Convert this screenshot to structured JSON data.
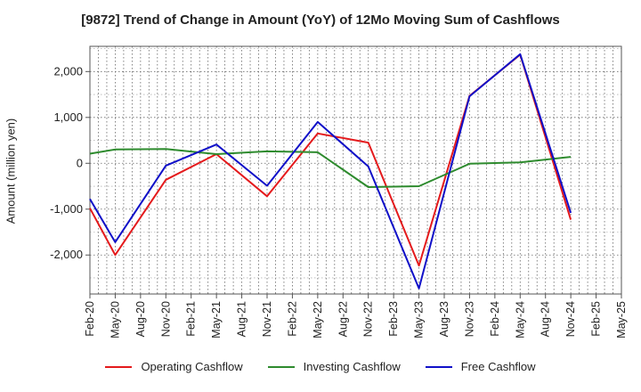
{
  "chart_data": {
    "type": "line",
    "title": "[9872]  Trend of Change in Amount (YoY) of 12Mo Moving Sum of Cashflows",
    "xlabel": "",
    "ylabel": "Amount (million yen)",
    "categories": [
      "Feb-20",
      "May-20",
      "Aug-20",
      "Nov-20",
      "Feb-21",
      "May-21",
      "Aug-21",
      "Nov-21",
      "Feb-22",
      "May-22",
      "Aug-22",
      "Nov-22",
      "Feb-23",
      "May-23",
      "Aug-23",
      "Nov-23",
      "Feb-24",
      "May-24",
      "Aug-24",
      "Nov-24",
      "Feb-25",
      "May-25"
    ],
    "ylim": [
      -2850,
      2550
    ],
    "yticks": [
      -2000,
      -1000,
      0,
      1000,
      2000
    ],
    "ytick_labels": [
      "-2,000",
      "-1,000",
      "0",
      "1,000",
      "2,000"
    ],
    "grid": true,
    "legend_position": "bottom",
    "series": [
      {
        "name": "Operating Cashflow",
        "color": "#e41a1c",
        "values": [
          -980,
          -2000,
          null,
          -360,
          null,
          200,
          null,
          -720,
          null,
          650,
          null,
          450,
          null,
          -2230,
          null,
          1470,
          null,
          2370,
          null,
          -1230,
          null,
          null
        ]
      },
      {
        "name": "Investing Cashflow",
        "color": "#2e8b2e",
        "values": [
          210,
          300,
          null,
          310,
          null,
          200,
          null,
          260,
          null,
          240,
          null,
          -520,
          null,
          -500,
          null,
          -10,
          null,
          20,
          null,
          140,
          null,
          null
        ]
      },
      {
        "name": "Free Cashflow",
        "color": "#1010c8",
        "values": [
          -780,
          -1720,
          null,
          -50,
          null,
          410,
          null,
          -490,
          null,
          900,
          null,
          -70,
          null,
          -2730,
          null,
          1460,
          null,
          2380,
          null,
          -1080,
          null,
          null
        ]
      }
    ]
  }
}
